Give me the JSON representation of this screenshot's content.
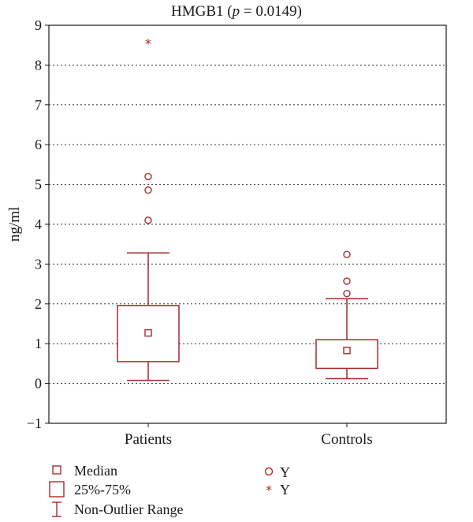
{
  "title": {
    "prefix": "HMGB1 (",
    "p_symbol": "p",
    "p_value_text": " = 0.0149)"
  },
  "colors": {
    "box": "#a52a2a",
    "axis": "#1a1a1a",
    "grid": "#333333"
  },
  "chart_data": {
    "type": "box",
    "ylabel": "ng/ml",
    "xlabel": "",
    "ylim": [
      -1,
      9
    ],
    "yticks": [
      "−1",
      "0",
      "1",
      "2",
      "3",
      "4",
      "5",
      "6",
      "7",
      "8",
      "9"
    ],
    "grid": "horizontal dotted",
    "categories": [
      "Patients",
      "Controls"
    ],
    "series": [
      {
        "name": "Patients",
        "whisker_low": 0.08,
        "q1": 0.55,
        "median": 1.27,
        "q3": 1.96,
        "whisker_high": 3.28,
        "outliers": [
          4.1,
          4.86,
          5.2
        ],
        "extremes": [
          8.55
        ]
      },
      {
        "name": "Controls",
        "whisker_low": 0.12,
        "q1": 0.38,
        "median": 0.83,
        "q3": 1.1,
        "whisker_high": 2.13,
        "outliers": [
          2.26,
          2.57,
          3.24
        ],
        "extremes": []
      }
    ]
  },
  "legend": {
    "median": "Median",
    "iqr": "25%-75%",
    "range": "Non-Outlier Range",
    "outlier": "Y",
    "extreme": "Y"
  }
}
